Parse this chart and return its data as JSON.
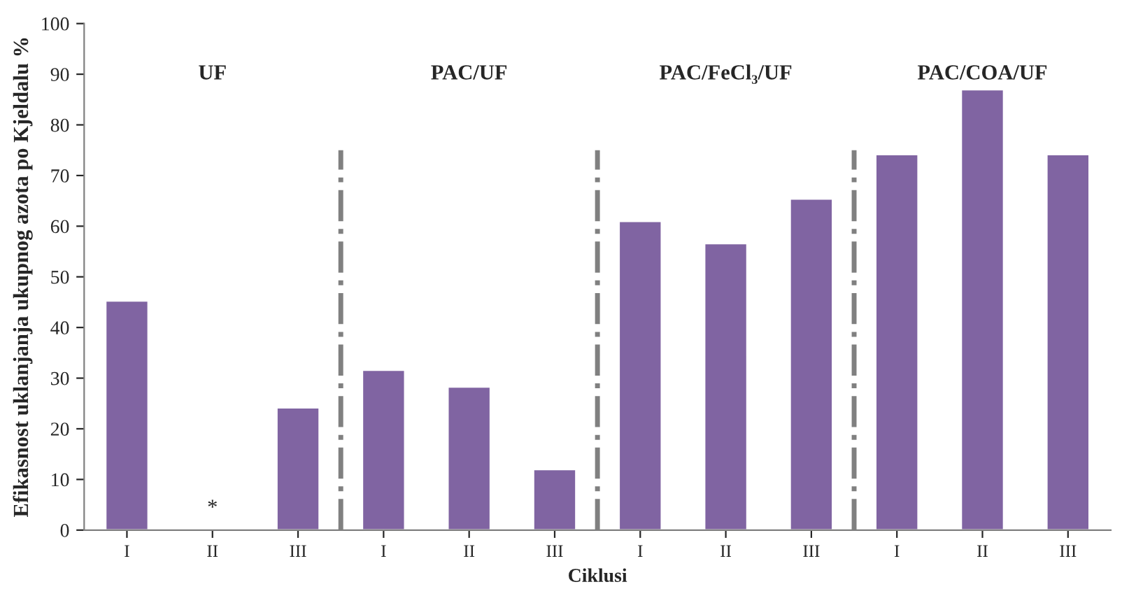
{
  "chart_data": {
    "type": "bar",
    "xlabel": "Ciklusi",
    "ylabel": "Efikasnost uklanjanja ukupnog azota po Kjeldalu %",
    "categories": [
      "I",
      "II",
      "III",
      "I",
      "II",
      "III",
      "I",
      "II",
      "III",
      "I",
      "II",
      "III"
    ],
    "values": [
      45.3,
      null,
      24.2,
      31.6,
      28.3,
      12.0,
      61.0,
      56.6,
      65.4,
      74.2,
      87.0,
      74.2
    ],
    "value_labels": [
      null,
      "*",
      null,
      null,
      null,
      null,
      null,
      null,
      null,
      null,
      null,
      null
    ],
    "color": "#8064a2",
    "ylim": [
      0,
      100
    ],
    "yticks": [
      0,
      10,
      20,
      30,
      40,
      50,
      60,
      70,
      80,
      90,
      100
    ],
    "grid": false,
    "annotations": [
      "UF",
      "PAC/UF",
      "PAC/FeCl₃/UF",
      "PAC/COA/UF"
    ]
  }
}
